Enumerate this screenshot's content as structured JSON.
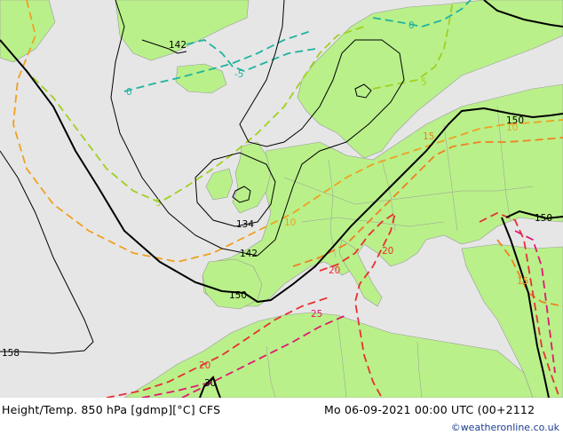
{
  "footer": {
    "title_left": "Height/Temp. 850 hPa [gdmp][°C] CFS",
    "title_right": "Mo 06-09-2021 00:00 UTC (00+2112",
    "credit": "©weatheronline.co.uk"
  },
  "colors": {
    "sea": "#e6e6e6",
    "land": "#b9f08a",
    "land_outside": "#c8c8c8",
    "height_contour": "#000000",
    "temp_minus5": "#1fb3a0",
    "temp_0": "#1fb3a0",
    "temp_5": "#a0d020",
    "temp_10": "#f0a020",
    "temp_15": "#f08020",
    "temp_20": "#e83030",
    "temp_25": "#e01870"
  },
  "contour_labels": {
    "h142_top": "142",
    "h134": "134",
    "h142": "142",
    "h150_w": "150",
    "h150_ne": "150",
    "h150_e": "150",
    "h158": "158",
    "t_minus5": "-5",
    "t_0_w": "0",
    "t_0_n": "0",
    "t_5_w": "5",
    "t_5_ne": "5",
    "t_10_w": "10",
    "t_10_ne": "10",
    "t_15_ne": "15",
    "t_15_e": "15",
    "t_20_c": "20",
    "t_20_e": "20",
    "t_20_s": "20",
    "t_25": "25",
    "t_30": "30"
  }
}
